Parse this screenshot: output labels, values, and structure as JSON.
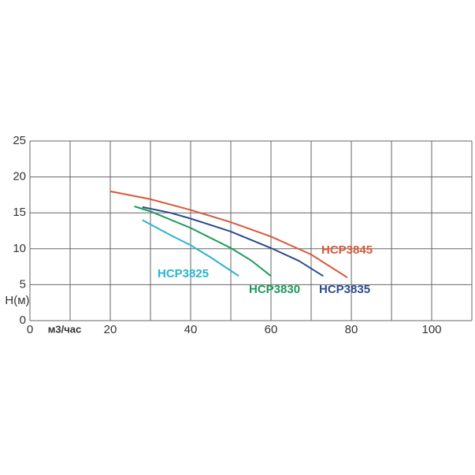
{
  "chart_data": {
    "type": "line",
    "xlabel": "м3/час",
    "ylabel": "H(м)",
    "xlim": [
      0,
      110
    ],
    "ylim": [
      0,
      25
    ],
    "xticks": [
      0,
      20,
      40,
      60,
      80,
      100
    ],
    "xgrid": [
      0,
      10,
      20,
      30,
      40,
      50,
      60,
      70,
      80,
      90,
      100,
      110
    ],
    "yticks": [
      0,
      5,
      10,
      15,
      20,
      25
    ],
    "grid": true,
    "series": [
      {
        "name": "HCP3845",
        "color": "#d9583c",
        "x": [
          20,
          30,
          40,
          50,
          60,
          70,
          79
        ],
        "values": [
          18,
          16.9,
          15.4,
          13.7,
          11.7,
          9.2,
          6.0
        ]
      },
      {
        "name": "HCP3835",
        "color": "#2d4a8c",
        "x": [
          28,
          35,
          40,
          50,
          60,
          67,
          73
        ],
        "values": [
          15.8,
          15,
          14.2,
          12.4,
          10.1,
          8.3,
          6.2
        ]
      },
      {
        "name": "HCP3830",
        "color": "#1b9a5c",
        "x": [
          26,
          30,
          40,
          50,
          55,
          60
        ],
        "values": [
          15.9,
          15.2,
          12.9,
          10.1,
          8.4,
          6.2
        ]
      },
      {
        "name": "HCP3825",
        "color": "#2ab2d2",
        "x": [
          28,
          35,
          40,
          45,
          52
        ],
        "values": [
          14,
          11.9,
          10.5,
          8.8,
          6.2
        ]
      }
    ]
  }
}
